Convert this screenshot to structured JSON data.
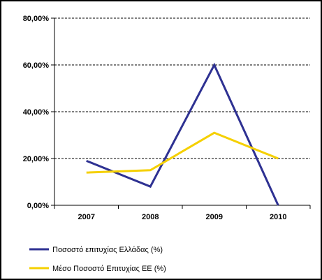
{
  "chart_data": {
    "type": "line",
    "categories": [
      "2007",
      "2008",
      "2009",
      "2010"
    ],
    "y_ticks": [
      "0,00%",
      "20,00%",
      "40,00%",
      "60,00%",
      "80,00%"
    ],
    "ylim": [
      0,
      80
    ],
    "grid": "horizontal dashed",
    "legend_position": "bottom",
    "series": [
      {
        "name": "Ποσοστό επιτυχίας Ελλάδας (%)",
        "color": "#2e3192",
        "values": [
          19,
          8,
          60,
          0
        ]
      },
      {
        "name": "Μέσο Ποσοστό Επιτυχίας ΕΕ (%)",
        "color": "#f5d000",
        "values": [
          14,
          15,
          31,
          20
        ]
      }
    ]
  }
}
